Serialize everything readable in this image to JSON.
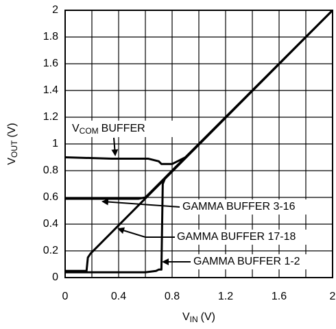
{
  "chart_data": {
    "type": "line",
    "y_label": {
      "main": "V",
      "sub": "OUT",
      "unit": "(V)"
    },
    "x_label": {
      "main": "V",
      "sub": "IN",
      "unit": "(V)"
    },
    "xlim": [
      0,
      2
    ],
    "ylim": [
      0,
      2
    ],
    "xticks": [
      0,
      0.4,
      0.8,
      1.2,
      1.6,
      2
    ],
    "x_minor_grid": [
      0.2,
      0.6,
      1.0,
      1.4,
      1.8
    ],
    "yticks": [
      0,
      0.2,
      0.4,
      0.6,
      0.8,
      1,
      1.2,
      1.4,
      1.6,
      1.8,
      2
    ],
    "grid": true,
    "series": [
      {
        "name": "GAMMA BUFFER 17-18",
        "color": "#000000",
        "x": [
          0,
          0.16,
          0.17,
          0.19,
          2
        ],
        "values": [
          0.05,
          0.05,
          0.15,
          0.18,
          2
        ]
      },
      {
        "name": "GAMMA BUFFER 1-2",
        "color": "#000000",
        "x": [
          0,
          0.6,
          0.68,
          0.7,
          0.72,
          0.73,
          0.75,
          2
        ],
        "values": [
          0.04,
          0.04,
          0.05,
          0.06,
          0.06,
          0.7,
          0.75,
          2
        ]
      },
      {
        "name": "GAMMA BUFFER 3-16",
        "color": "#000000",
        "x": [
          0,
          0.55,
          0.6,
          2
        ],
        "values": [
          0.59,
          0.59,
          0.6,
          2
        ]
      },
      {
        "name": "BUFFER",
        "color": "#000000",
        "x": [
          0,
          0.35,
          0.62,
          0.7,
          0.72,
          0.8,
          0.9,
          2
        ],
        "values": [
          0.9,
          0.89,
          0.89,
          0.87,
          0.85,
          0.85,
          0.9,
          2
        ]
      }
    ],
    "vcom_label": {
      "main": "V",
      "sub": "COM"
    }
  }
}
